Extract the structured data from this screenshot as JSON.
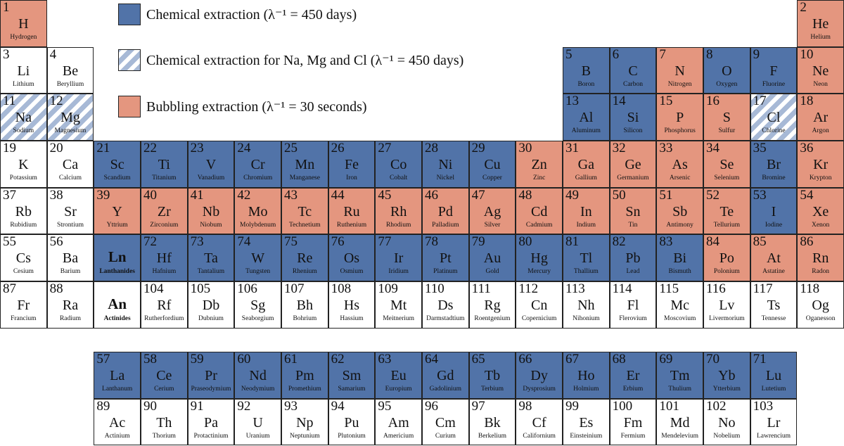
{
  "colors": {
    "chemical": "#5173a8",
    "chemical_hatched": "#a7b9d6",
    "bubbling": "#e4967f"
  },
  "legend": [
    {
      "key": "c",
      "label": "Chemical extraction (λ⁻¹ = 450 days)"
    },
    {
      "key": "h",
      "label": "Chemical extraction for Na, Mg and Cl (λ⁻¹ = 450 days)"
    },
    {
      "key": "b",
      "label": "Bubbling extraction (λ⁻¹ = 30 seconds)"
    }
  ],
  "elements": [
    [
      1,
      "H",
      "Hydrogen",
      "b",
      1,
      1
    ],
    [
      2,
      "He",
      "Helium",
      "b",
      1,
      18
    ],
    [
      3,
      "Li",
      "Lithium",
      "",
      2,
      1
    ],
    [
      4,
      "Be",
      "Beryllium",
      "",
      2,
      2
    ],
    [
      5,
      "B",
      "Boron",
      "c",
      2,
      13
    ],
    [
      6,
      "C",
      "Carbon",
      "c",
      2,
      14
    ],
    [
      7,
      "N",
      "Nitrogen",
      "b",
      2,
      15
    ],
    [
      8,
      "O",
      "Oxygen",
      "c",
      2,
      16
    ],
    [
      9,
      "F",
      "Fluorine",
      "c",
      2,
      17
    ],
    [
      10,
      "Ne",
      "Neon",
      "b",
      2,
      18
    ],
    [
      11,
      "Na",
      "Sodium",
      "h",
      3,
      1
    ],
    [
      12,
      "Mg",
      "Magnesium",
      "h",
      3,
      2
    ],
    [
      13,
      "Al",
      "Aluminum",
      "c",
      3,
      13
    ],
    [
      14,
      "Si",
      "Silicon",
      "c",
      3,
      14
    ],
    [
      15,
      "P",
      "Phosphorus",
      "b",
      3,
      15
    ],
    [
      16,
      "S",
      "Sulfur",
      "b",
      3,
      16
    ],
    [
      17,
      "Cl",
      "Chlorine",
      "h",
      3,
      17
    ],
    [
      18,
      "Ar",
      "Argon",
      "b",
      3,
      18
    ],
    [
      19,
      "K",
      "Potassium",
      "",
      4,
      1
    ],
    [
      20,
      "Ca",
      "Calcium",
      "",
      4,
      2
    ],
    [
      21,
      "Sc",
      "Scandium",
      "c",
      4,
      3
    ],
    [
      22,
      "Ti",
      "Titanium",
      "c",
      4,
      4
    ],
    [
      23,
      "V",
      "Vanadium",
      "c",
      4,
      5
    ],
    [
      24,
      "Cr",
      "Chromium",
      "c",
      4,
      6
    ],
    [
      25,
      "Mn",
      "Manganese",
      "c",
      4,
      7
    ],
    [
      26,
      "Fe",
      "Iron",
      "c",
      4,
      8
    ],
    [
      27,
      "Co",
      "Cobalt",
      "c",
      4,
      9
    ],
    [
      28,
      "Ni",
      "Nickel",
      "c",
      4,
      10
    ],
    [
      29,
      "Cu",
      "Copper",
      "c",
      4,
      11
    ],
    [
      30,
      "Zn",
      "Zinc",
      "b",
      4,
      12
    ],
    [
      31,
      "Ga",
      "Gallium",
      "b",
      4,
      13
    ],
    [
      32,
      "Ge",
      "Germanium",
      "b",
      4,
      14
    ],
    [
      33,
      "As",
      "Arsenic",
      "b",
      4,
      15
    ],
    [
      34,
      "Se",
      "Selenium",
      "b",
      4,
      16
    ],
    [
      35,
      "Br",
      "Bromine",
      "c",
      4,
      17
    ],
    [
      36,
      "Kr",
      "Krypton",
      "b",
      4,
      18
    ],
    [
      37,
      "Rb",
      "Rubidium",
      "",
      5,
      1
    ],
    [
      38,
      "Sr",
      "Strontium",
      "",
      5,
      2
    ],
    [
      39,
      "Y",
      "Yttrium",
      "b",
      5,
      3
    ],
    [
      40,
      "Zr",
      "Zirconium",
      "b",
      5,
      4
    ],
    [
      41,
      "Nb",
      "Niobum",
      "b",
      5,
      5
    ],
    [
      42,
      "Mo",
      "Molybdenum",
      "b",
      5,
      6
    ],
    [
      43,
      "Tc",
      "Technetium",
      "b",
      5,
      7
    ],
    [
      44,
      "Ru",
      "Ruthenium",
      "b",
      5,
      8
    ],
    [
      45,
      "Rh",
      "Rhodium",
      "b",
      5,
      9
    ],
    [
      46,
      "Pd",
      "Palladium",
      "b",
      5,
      10
    ],
    [
      47,
      "Ag",
      "Silver",
      "b",
      5,
      11
    ],
    [
      48,
      "Cd",
      "Cadmium",
      "b",
      5,
      12
    ],
    [
      49,
      "In",
      "Indium",
      "b",
      5,
      13
    ],
    [
      50,
      "Sn",
      "Tin",
      "b",
      5,
      14
    ],
    [
      51,
      "Sb",
      "Antimony",
      "b",
      5,
      15
    ],
    [
      52,
      "Te",
      "Tellurium",
      "b",
      5,
      16
    ],
    [
      53,
      "I",
      "Iodine",
      "c",
      5,
      17
    ],
    [
      54,
      "Xe",
      "Xenon",
      "b",
      5,
      18
    ],
    [
      55,
      "Cs",
      "Cesium",
      "",
      6,
      1
    ],
    [
      56,
      "Ba",
      "Barium",
      "",
      6,
      2
    ],
    [
      "",
      "Ln",
      "Lanthanides",
      "c",
      6,
      3
    ],
    [
      72,
      "Hf",
      "Hafnium",
      "c",
      6,
      4
    ],
    [
      73,
      "Ta",
      "Tantalium",
      "c",
      6,
      5
    ],
    [
      74,
      "W",
      "Tungsten",
      "c",
      6,
      6
    ],
    [
      75,
      "Re",
      "Rhenium",
      "c",
      6,
      7
    ],
    [
      76,
      "Os",
      "Osmium",
      "c",
      6,
      8
    ],
    [
      77,
      "Ir",
      "Iridium",
      "c",
      6,
      9
    ],
    [
      78,
      "Pt",
      "Platinum",
      "c",
      6,
      10
    ],
    [
      79,
      "Au",
      "Gold",
      "c",
      6,
      11
    ],
    [
      80,
      "Hg",
      "Mercury",
      "c",
      6,
      12
    ],
    [
      81,
      "Tl",
      "Thallium",
      "c",
      6,
      13
    ],
    [
      82,
      "Pb",
      "Lead",
      "c",
      6,
      14
    ],
    [
      83,
      "Bi",
      "Bismuth",
      "c",
      6,
      15
    ],
    [
      84,
      "Po",
      "Polonium",
      "b",
      6,
      16
    ],
    [
      85,
      "At",
      "Astatine",
      "b",
      6,
      17
    ],
    [
      86,
      "Rn",
      "Radon",
      "b",
      6,
      18
    ],
    [
      87,
      "Fr",
      "Francium",
      "",
      7,
      1
    ],
    [
      88,
      "Ra",
      "Radium",
      "",
      7,
      2
    ],
    [
      "",
      "An",
      "Actinides",
      "",
      7,
      3
    ],
    [
      104,
      "Rf",
      "Rutherfordium",
      "",
      7,
      4
    ],
    [
      105,
      "Db",
      "Dubnium",
      "",
      7,
      5
    ],
    [
      106,
      "Sg",
      "Seaborgium",
      "",
      7,
      6
    ],
    [
      107,
      "Bh",
      "Bohrium",
      "",
      7,
      7
    ],
    [
      108,
      "Hs",
      "Hassium",
      "",
      7,
      8
    ],
    [
      109,
      "Mt",
      "Meitnerium",
      "",
      7,
      9
    ],
    [
      110,
      "Ds",
      "Darmstadtium",
      "",
      7,
      10
    ],
    [
      111,
      "Rg",
      "Roentgenium",
      "",
      7,
      11
    ],
    [
      112,
      "Cn",
      "Copernicium",
      "",
      7,
      12
    ],
    [
      113,
      "Nh",
      "Nihonium",
      "",
      7,
      13
    ],
    [
      114,
      "Fl",
      "Flerovium",
      "",
      7,
      14
    ],
    [
      115,
      "Mc",
      "Moscovium",
      "",
      7,
      15
    ],
    [
      116,
      "Lv",
      "Livermorium",
      "",
      7,
      16
    ],
    [
      117,
      "Ts",
      "Tennesse",
      "",
      7,
      17
    ],
    [
      118,
      "Og",
      "Oganesson",
      "",
      7,
      18
    ],
    [
      57,
      "La",
      "Lanthanum",
      "c",
      9,
      3
    ],
    [
      58,
      "Ce",
      "Cerium",
      "c",
      9,
      4
    ],
    [
      59,
      "Pr",
      "Praseodymium",
      "c",
      9,
      5
    ],
    [
      60,
      "Nd",
      "Neodymium",
      "c",
      9,
      6
    ],
    [
      61,
      "Pm",
      "Promethium",
      "c",
      9,
      7
    ],
    [
      62,
      "Sm",
      "Samarium",
      "c",
      9,
      8
    ],
    [
      63,
      "Eu",
      "Europium",
      "c",
      9,
      9
    ],
    [
      64,
      "Gd",
      "Gadolinium",
      "c",
      9,
      10
    ],
    [
      65,
      "Tb",
      "Terbium",
      "c",
      9,
      11
    ],
    [
      66,
      "Dy",
      "Dysprosium",
      "c",
      9,
      12
    ],
    [
      67,
      "Ho",
      "Holmium",
      "c",
      9,
      13
    ],
    [
      68,
      "Er",
      "Erbium",
      "c",
      9,
      14
    ],
    [
      69,
      "Tm",
      "Thulium",
      "c",
      9,
      15
    ],
    [
      70,
      "Yb",
      "Ytterbium",
      "c",
      9,
      16
    ],
    [
      71,
      "Lu",
      "Lutetium",
      "c",
      9,
      17
    ],
    [
      89,
      "Ac",
      "Actinium",
      "",
      10,
      3
    ],
    [
      90,
      "Th",
      "Thorium",
      "",
      10,
      4
    ],
    [
      91,
      "Pa",
      "Protactinium",
      "",
      10,
      5
    ],
    [
      92,
      "U",
      "Uranium",
      "",
      10,
      6
    ],
    [
      93,
      "Np",
      "Neptunium",
      "",
      10,
      7
    ],
    [
      94,
      "Pu",
      "Plutonium",
      "",
      10,
      8
    ],
    [
      95,
      "Am",
      "Americium",
      "",
      10,
      9
    ],
    [
      96,
      "Cm",
      "Curium",
      "",
      10,
      10
    ],
    [
      97,
      "Bk",
      "Berkelium",
      "",
      10,
      11
    ],
    [
      98,
      "Cf",
      "Californium",
      "",
      10,
      12
    ],
    [
      99,
      "Es",
      "Einsteinium",
      "",
      10,
      13
    ],
    [
      100,
      "Fm",
      "Fermium",
      "",
      10,
      14
    ],
    [
      101,
      "Md",
      "Mendelevium",
      "",
      10,
      15
    ],
    [
      102,
      "No",
      "Nobelium",
      "",
      10,
      16
    ],
    [
      103,
      "Lr",
      "Lawrencium",
      "",
      10,
      17
    ]
  ]
}
